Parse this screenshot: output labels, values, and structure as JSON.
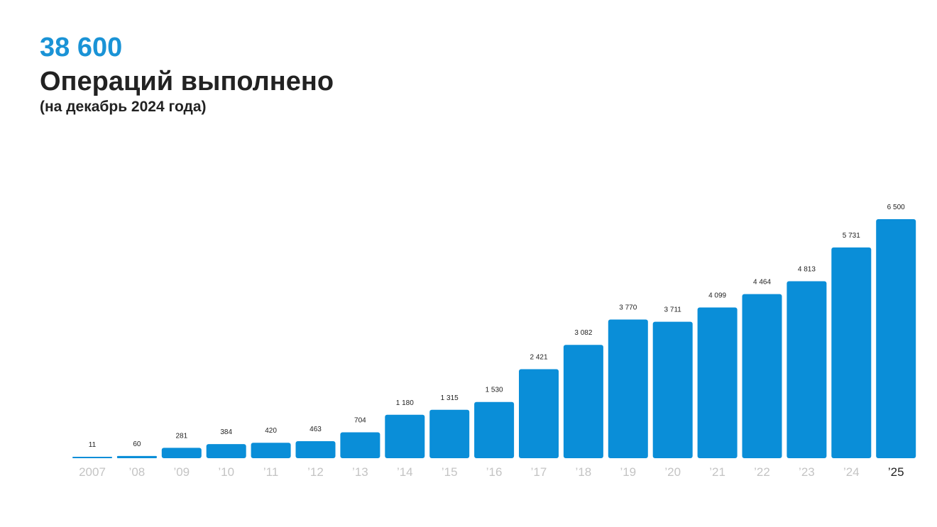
{
  "header": {
    "total": "38 600",
    "title": "Операций выполнено",
    "subtitle": "(на декабрь 2024 года)"
  },
  "colors": {
    "accent": "#1a93d6",
    "bar": "#0a8ed8",
    "text": "#222222",
    "tick": "#c4c4c4"
  },
  "chart_data": {
    "type": "bar",
    "title": "Операций выполнено",
    "categories": [
      "2007",
      "’08",
      "’09",
      "’10",
      "’11",
      "’12",
      "’13",
      "’14",
      "’15",
      "’16",
      "’17",
      "’18",
      "’19",
      "’20",
      "’21",
      "’22",
      "’23",
      "’24",
      "’25"
    ],
    "values": [
      11,
      60,
      281,
      384,
      420,
      463,
      704,
      1180,
      1315,
      1530,
      2421,
      3082,
      3770,
      3711,
      4099,
      4464,
      4813,
      5731,
      6500
    ],
    "value_labels": [
      "11",
      "60",
      "281",
      "384",
      "420",
      "463",
      "704",
      "1 180",
      "1 315",
      "1 530",
      "2 421",
      "3 082",
      "3 770",
      "3 711",
      "4 099",
      "4 464",
      "4 813",
      "5 731",
      "6 500"
    ],
    "xlabel": "",
    "ylabel": "",
    "ylim": [
      0,
      6500
    ],
    "grid": false,
    "legend": "none",
    "highlighted_category": "’25"
  }
}
